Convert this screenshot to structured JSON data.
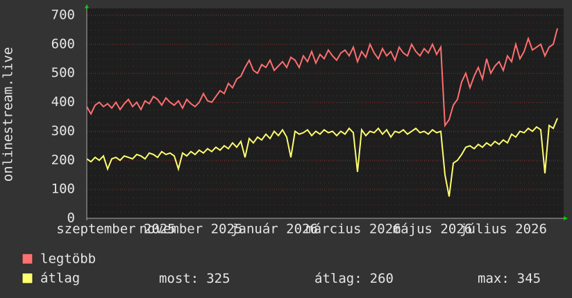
{
  "chart_data": {
    "type": "line",
    "y_label": "onlinestream.live",
    "categories": [
      null,
      null,
      null,
      null,
      null,
      null,
      null,
      "szeptember 2025",
      null,
      null,
      null,
      null,
      null,
      null,
      null,
      null,
      null,
      null,
      null,
      null,
      null,
      null,
      null,
      null,
      null,
      "november 2025",
      null,
      null,
      null,
      null,
      null,
      null,
      null,
      null,
      null,
      null,
      null,
      null,
      null,
      null,
      null,
      null,
      null,
      null,
      null,
      "január 2026",
      null,
      null,
      null,
      null,
      null,
      null,
      null,
      null,
      null,
      null,
      null,
      null,
      null,
      null,
      null,
      null,
      null,
      null,
      "március 2026",
      null,
      null,
      null,
      null,
      null,
      null,
      null,
      null,
      null,
      null,
      null,
      null,
      null,
      null,
      null,
      null,
      null,
      null,
      "május 2026",
      null,
      null,
      null,
      null,
      null,
      null,
      null,
      null,
      null,
      null,
      null,
      null,
      null,
      null,
      null,
      null,
      "július 2026",
      null,
      null,
      null,
      null,
      null,
      null,
      null,
      null,
      null,
      null,
      null,
      null,
      null
    ],
    "series": [
      {
        "name": "legtöbb",
        "color": "#ff7070",
        "values": [
          385,
          360,
          390,
          400,
          385,
          395,
          380,
          400,
          375,
          395,
          410,
          385,
          400,
          375,
          405,
          395,
          420,
          410,
          390,
          415,
          400,
          390,
          405,
          380,
          410,
          395,
          385,
          400,
          430,
          405,
          400,
          420,
          440,
          430,
          465,
          450,
          480,
          490,
          520,
          545,
          510,
          500,
          530,
          520,
          545,
          510,
          525,
          540,
          520,
          555,
          545,
          520,
          560,
          540,
          575,
          535,
          565,
          550,
          580,
          560,
          545,
          570,
          580,
          560,
          590,
          540,
          575,
          555,
          600,
          570,
          550,
          585,
          560,
          575,
          545,
          590,
          570,
          560,
          600,
          575,
          560,
          585,
          570,
          600,
          565,
          590,
          320,
          340,
          390,
          410,
          470,
          500,
          450,
          490,
          520,
          480,
          550,
          500,
          525,
          540,
          510,
          560,
          540,
          600,
          550,
          575,
          620,
          580,
          590,
          600,
          560,
          590,
          600,
          655
        ]
      },
      {
        "name": "átlag",
        "color": "#ffff70",
        "values": [
          205,
          195,
          210,
          200,
          215,
          170,
          205,
          210,
          200,
          215,
          210,
          205,
          220,
          215,
          205,
          225,
          220,
          210,
          230,
          220,
          225,
          215,
          170,
          225,
          215,
          230,
          220,
          235,
          225,
          240,
          230,
          245,
          235,
          250,
          240,
          260,
          245,
          265,
          210,
          275,
          260,
          280,
          270,
          290,
          275,
          300,
          285,
          305,
          280,
          210,
          300,
          290,
          295,
          305,
          285,
          300,
          290,
          305,
          295,
          300,
          285,
          300,
          290,
          310,
          295,
          160,
          305,
          285,
          300,
          295,
          310,
          290,
          305,
          280,
          300,
          295,
          305,
          290,
          300,
          310,
          295,
          300,
          290,
          305,
          295,
          300,
          150,
          75,
          190,
          200,
          220,
          245,
          250,
          240,
          255,
          245,
          260,
          250,
          265,
          255,
          270,
          260,
          290,
          280,
          300,
          295,
          310,
          300,
          315,
          305,
          155,
          320,
          310,
          345
        ]
      }
    ],
    "stats": [
      {
        "label": "most:",
        "value": 325
      },
      {
        "label": "átlag:",
        "value": 260
      },
      {
        "label": "max:",
        "value": 345
      }
    ],
    "ylim": [
      0,
      700
    ],
    "yticks": [
      0,
      100,
      200,
      300,
      400,
      500,
      600,
      700
    ],
    "grid": true
  }
}
